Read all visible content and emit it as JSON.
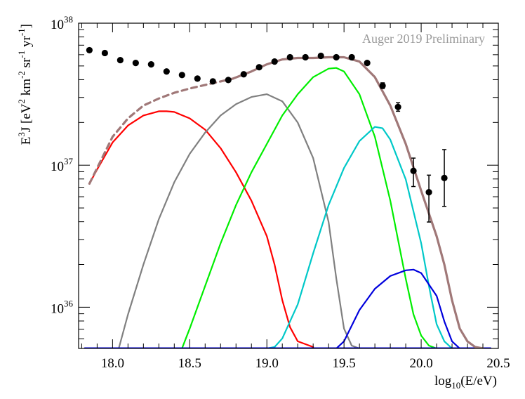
{
  "chart_data": {
    "type": "line",
    "title": "",
    "annotation": "Auger 2019 Preliminary",
    "xlabel": {
      "base": "log",
      "sub": "10",
      "rest": "(E/eV)"
    },
    "ylabel": {
      "parts": [
        {
          "t": "E",
          "s": "n"
        },
        {
          "t": "3",
          "s": "sup"
        },
        {
          "t": "J [eV",
          "s": "n"
        },
        {
          "t": "2",
          "s": "sup"
        },
        {
          "t": " km",
          "s": "n"
        },
        {
          "t": "-2",
          "s": "sup"
        },
        {
          "t": " sr",
          "s": "n"
        },
        {
          "t": "-1",
          "s": "sup"
        },
        {
          "t": " yr",
          "s": "n"
        },
        {
          "t": "-1",
          "s": "sup"
        },
        {
          "t": "]",
          "s": "n"
        }
      ]
    },
    "xlim": [
      17.78,
      20.5
    ],
    "ylim_log10": [
      35.71,
      38.0
    ],
    "y_scale": "log",
    "x_ticks": [
      18.0,
      18.5,
      19.0,
      19.5,
      20.0,
      20.5
    ],
    "x_tick_labels": [
      "18.0",
      "18.5",
      "19.0",
      "19.5",
      "20.0",
      "20.5"
    ],
    "y_major_exponents": [
      36,
      37,
      38
    ],
    "y_tick_base": "10",
    "data_points": [
      {
        "x": 17.85,
        "log10y": 37.81
      },
      {
        "x": 17.95,
        "log10y": 37.79
      },
      {
        "x": 18.05,
        "log10y": 37.74
      },
      {
        "x": 18.15,
        "log10y": 37.72
      },
      {
        "x": 18.25,
        "log10y": 37.71
      },
      {
        "x": 18.35,
        "log10y": 37.66
      },
      {
        "x": 18.45,
        "log10y": 37.635
      },
      {
        "x": 18.55,
        "log10y": 37.61
      },
      {
        "x": 18.65,
        "log10y": 37.59
      },
      {
        "x": 18.75,
        "log10y": 37.6
      },
      {
        "x": 18.85,
        "log10y": 37.64
      },
      {
        "x": 18.95,
        "log10y": 37.69
      },
      {
        "x": 19.05,
        "log10y": 37.73
      },
      {
        "x": 19.15,
        "log10y": 37.76
      },
      {
        "x": 19.25,
        "log10y": 37.76
      },
      {
        "x": 19.35,
        "log10y": 37.77
      },
      {
        "x": 19.45,
        "log10y": 37.76
      },
      {
        "x": 19.55,
        "log10y": 37.76
      },
      {
        "x": 19.65,
        "log10y": 37.72
      },
      {
        "x": 19.75,
        "log10y": 37.56,
        "err_lo": 37.54,
        "err_hi": 37.58
      },
      {
        "x": 19.85,
        "log10y": 37.41,
        "err_lo": 37.38,
        "err_hi": 37.44
      },
      {
        "x": 19.95,
        "log10y": 36.96,
        "err_lo": 36.85,
        "err_hi": 37.05
      },
      {
        "x": 20.05,
        "log10y": 36.81,
        "err_lo": 36.6,
        "err_hi": 36.93
      },
      {
        "x": 20.15,
        "log10y": 36.91,
        "err_lo": 36.71,
        "err_hi": 37.11
      }
    ],
    "series": [
      {
        "name": "red",
        "color": "#ff0000",
        "points": [
          [
            17.85,
            36.87
          ],
          [
            17.9,
            36.97
          ],
          [
            18.0,
            37.16
          ],
          [
            18.1,
            37.28
          ],
          [
            18.2,
            37.35
          ],
          [
            18.3,
            37.38
          ],
          [
            18.35,
            37.38
          ],
          [
            18.4,
            37.375
          ],
          [
            18.5,
            37.33
          ],
          [
            18.6,
            37.25
          ],
          [
            18.7,
            37.12
          ],
          [
            18.8,
            36.95
          ],
          [
            18.9,
            36.75
          ],
          [
            19.0,
            36.5
          ],
          [
            19.05,
            36.3
          ],
          [
            19.1,
            36.05
          ],
          [
            19.15,
            35.86
          ],
          [
            19.2,
            35.76
          ],
          [
            19.3,
            35.72
          ]
        ]
      },
      {
        "name": "gray",
        "color": "#808080",
        "points": [
          [
            18.04,
            35.71
          ],
          [
            18.1,
            35.95
          ],
          [
            18.2,
            36.3
          ],
          [
            18.3,
            36.62
          ],
          [
            18.4,
            36.88
          ],
          [
            18.5,
            37.08
          ],
          [
            18.6,
            37.23
          ],
          [
            18.7,
            37.35
          ],
          [
            18.8,
            37.43
          ],
          [
            18.9,
            37.48
          ],
          [
            19.0,
            37.5
          ],
          [
            19.1,
            37.45
          ],
          [
            19.2,
            37.3
          ],
          [
            19.3,
            37.05
          ],
          [
            19.4,
            36.6
          ],
          [
            19.45,
            36.2
          ],
          [
            19.5,
            35.85
          ],
          [
            19.55,
            35.73
          ],
          [
            19.6,
            35.71
          ]
        ]
      },
      {
        "name": "green",
        "color": "#00ee00",
        "points": [
          [
            18.45,
            35.71
          ],
          [
            18.5,
            35.85
          ],
          [
            18.6,
            36.15
          ],
          [
            18.7,
            36.45
          ],
          [
            18.8,
            36.72
          ],
          [
            18.9,
            36.95
          ],
          [
            19.0,
            37.15
          ],
          [
            19.1,
            37.35
          ],
          [
            19.2,
            37.5
          ],
          [
            19.3,
            37.62
          ],
          [
            19.4,
            37.68
          ],
          [
            19.45,
            37.685
          ],
          [
            19.5,
            37.66
          ],
          [
            19.6,
            37.5
          ],
          [
            19.7,
            37.2
          ],
          [
            19.8,
            36.75
          ],
          [
            19.9,
            36.2
          ],
          [
            19.95,
            35.95
          ],
          [
            20.0,
            35.8
          ],
          [
            20.05,
            35.73
          ],
          [
            20.1,
            35.71
          ]
        ]
      },
      {
        "name": "cyan",
        "color": "#00c8c8",
        "points": [
          [
            19.0,
            35.71
          ],
          [
            19.05,
            35.72
          ],
          [
            19.1,
            35.78
          ],
          [
            19.2,
            36.02
          ],
          [
            19.3,
            36.38
          ],
          [
            19.4,
            36.72
          ],
          [
            19.5,
            36.98
          ],
          [
            19.6,
            37.17
          ],
          [
            19.7,
            37.27
          ],
          [
            19.75,
            37.26
          ],
          [
            19.8,
            37.18
          ],
          [
            19.9,
            36.9
          ],
          [
            20.0,
            36.45
          ],
          [
            20.05,
            36.15
          ],
          [
            20.1,
            35.88
          ],
          [
            20.15,
            35.76
          ],
          [
            20.2,
            35.71
          ]
        ]
      },
      {
        "name": "blue",
        "color": "#0000dd",
        "points": [
          [
            19.45,
            35.71
          ],
          [
            19.5,
            35.76
          ],
          [
            19.6,
            35.98
          ],
          [
            19.7,
            36.13
          ],
          [
            19.8,
            36.22
          ],
          [
            19.9,
            36.26
          ],
          [
            19.95,
            36.265
          ],
          [
            20.0,
            36.24
          ],
          [
            20.1,
            36.08
          ],
          [
            20.15,
            35.9
          ],
          [
            20.2,
            35.76
          ],
          [
            20.25,
            35.71
          ]
        ]
      },
      {
        "name": "baseline",
        "color": "#0000dd",
        "points": [
          [
            17.82,
            35.712
          ],
          [
            20.45,
            35.712
          ]
        ]
      },
      {
        "name": "total-dashed",
        "color": "#a07878",
        "dashed": true,
        "points": [
          [
            17.85,
            36.87
          ],
          [
            17.9,
            36.98
          ],
          [
            18.0,
            37.2
          ],
          [
            18.1,
            37.33
          ],
          [
            18.2,
            37.42
          ],
          [
            18.3,
            37.47
          ],
          [
            18.4,
            37.51
          ],
          [
            18.5,
            37.54
          ],
          [
            18.6,
            37.565
          ],
          [
            18.7,
            37.59
          ],
          [
            18.78,
            37.61
          ]
        ]
      },
      {
        "name": "total",
        "color": "#a07878",
        "points": [
          [
            18.78,
            37.61
          ],
          [
            18.9,
            37.66
          ],
          [
            19.0,
            37.71
          ],
          [
            19.1,
            37.745
          ],
          [
            19.2,
            37.755
          ],
          [
            19.3,
            37.755
          ],
          [
            19.4,
            37.76
          ],
          [
            19.5,
            37.76
          ],
          [
            19.6,
            37.73
          ],
          [
            19.7,
            37.62
          ],
          [
            19.8,
            37.42
          ],
          [
            19.9,
            37.15
          ],
          [
            20.0,
            36.82
          ],
          [
            20.1,
            36.5
          ],
          [
            20.15,
            36.3
          ],
          [
            20.2,
            36.05
          ],
          [
            20.25,
            35.85
          ],
          [
            20.3,
            35.76
          ],
          [
            20.35,
            35.72
          ],
          [
            20.4,
            35.71
          ]
        ]
      }
    ]
  }
}
